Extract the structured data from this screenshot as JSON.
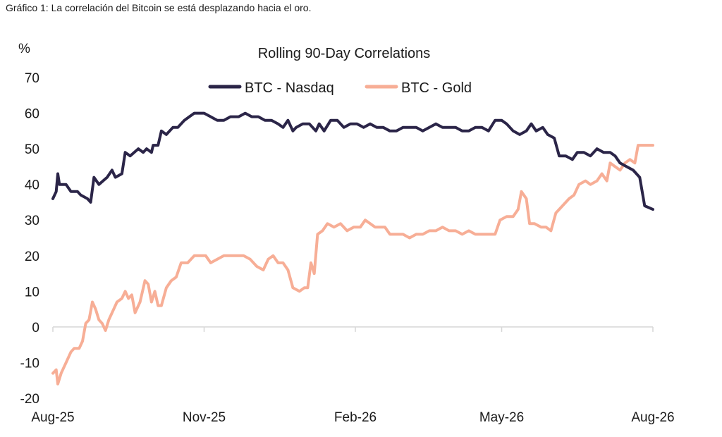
{
  "caption": "Gráfico 1: La correlación del Bitcoin se está desplazando hacia el oro.",
  "chart_data": {
    "type": "line",
    "title": "Rolling 90-Day Correlations",
    "ylabel": "%",
    "xlabel": "",
    "ylim": [
      -20,
      70
    ],
    "yticks": [
      -20,
      -10,
      0,
      10,
      20,
      30,
      40,
      50,
      60,
      70
    ],
    "xlim": [
      "2025-08-01",
      "2026-08-01"
    ],
    "xticks": [
      {
        "date": "2025-08-01",
        "label": "Aug-25"
      },
      {
        "date": "2025-11-01",
        "label": "Nov-25"
      },
      {
        "date": "2026-02-01",
        "label": "Feb-26"
      },
      {
        "date": "2026-05-01",
        "label": "May-26"
      },
      {
        "date": "2026-08-01",
        "label": "Aug-26"
      }
    ],
    "legend_position": "top-center",
    "grid": false,
    "series": [
      {
        "name": "BTC - Nasdaq",
        "color": "#2b2548",
        "points": [
          [
            "2025-08-01",
            36
          ],
          [
            "2025-08-03",
            38
          ],
          [
            "2025-08-04",
            43
          ],
          [
            "2025-08-05",
            40
          ],
          [
            "2025-08-09",
            40
          ],
          [
            "2025-08-12",
            38
          ],
          [
            "2025-08-16",
            38
          ],
          [
            "2025-08-18",
            37
          ],
          [
            "2025-08-22",
            36
          ],
          [
            "2025-08-24",
            35
          ],
          [
            "2025-08-26",
            42
          ],
          [
            "2025-08-29",
            40
          ],
          [
            "2025-09-03",
            42
          ],
          [
            "2025-09-06",
            44
          ],
          [
            "2025-09-08",
            42
          ],
          [
            "2025-09-12",
            43
          ],
          [
            "2025-09-14",
            49
          ],
          [
            "2025-09-17",
            48
          ],
          [
            "2025-09-22",
            50
          ],
          [
            "2025-09-25",
            49
          ],
          [
            "2025-09-27",
            50
          ],
          [
            "2025-09-30",
            49
          ],
          [
            "2025-10-01",
            51
          ],
          [
            "2025-10-04",
            51
          ],
          [
            "2025-10-06",
            55
          ],
          [
            "2025-10-09",
            54
          ],
          [
            "2025-10-13",
            56
          ],
          [
            "2025-10-16",
            56
          ],
          [
            "2025-10-20",
            58
          ],
          [
            "2025-10-23",
            59
          ],
          [
            "2025-10-26",
            60
          ],
          [
            "2025-11-01",
            60
          ],
          [
            "2025-11-05",
            59
          ],
          [
            "2025-11-09",
            58
          ],
          [
            "2025-11-13",
            58
          ],
          [
            "2025-11-17",
            59
          ],
          [
            "2025-11-22",
            59
          ],
          [
            "2025-11-26",
            60
          ],
          [
            "2025-11-30",
            59
          ],
          [
            "2025-12-04",
            59
          ],
          [
            "2025-12-08",
            58
          ],
          [
            "2025-12-12",
            58
          ],
          [
            "2025-12-16",
            57
          ],
          [
            "2025-12-19",
            56
          ],
          [
            "2025-12-22",
            58
          ],
          [
            "2025-12-25",
            55
          ],
          [
            "2025-12-27",
            56
          ],
          [
            "2025-12-31",
            57
          ],
          [
            "2026-01-04",
            57
          ],
          [
            "2026-01-08",
            55
          ],
          [
            "2026-01-10",
            57
          ],
          [
            "2026-01-13",
            55
          ],
          [
            "2026-01-17",
            58
          ],
          [
            "2026-01-21",
            58
          ],
          [
            "2026-01-25",
            56
          ],
          [
            "2026-01-29",
            57
          ],
          [
            "2026-02-02",
            57
          ],
          [
            "2026-02-06",
            56
          ],
          [
            "2026-02-10",
            57
          ],
          [
            "2026-02-14",
            56
          ],
          [
            "2026-02-18",
            56
          ],
          [
            "2026-02-22",
            55
          ],
          [
            "2026-02-26",
            55
          ],
          [
            "2026-03-02",
            56
          ],
          [
            "2026-03-06",
            56
          ],
          [
            "2026-03-10",
            56
          ],
          [
            "2026-03-14",
            55
          ],
          [
            "2026-03-18",
            56
          ],
          [
            "2026-03-22",
            57
          ],
          [
            "2026-03-26",
            56
          ],
          [
            "2026-03-30",
            56
          ],
          [
            "2026-04-03",
            56
          ],
          [
            "2026-04-07",
            55
          ],
          [
            "2026-04-11",
            55
          ],
          [
            "2026-04-15",
            56
          ],
          [
            "2026-04-19",
            56
          ],
          [
            "2026-04-23",
            55
          ],
          [
            "2026-04-27",
            58
          ],
          [
            "2026-05-01",
            58
          ],
          [
            "2026-05-04",
            57
          ],
          [
            "2026-05-08",
            55
          ],
          [
            "2026-05-12",
            54
          ],
          [
            "2026-05-16",
            55
          ],
          [
            "2026-05-19",
            57
          ],
          [
            "2026-05-22",
            55
          ],
          [
            "2026-05-26",
            56
          ],
          [
            "2026-05-29",
            54
          ],
          [
            "2026-06-02",
            53
          ],
          [
            "2026-06-05",
            48
          ],
          [
            "2026-06-09",
            48
          ],
          [
            "2026-06-13",
            47
          ],
          [
            "2026-06-16",
            49
          ],
          [
            "2026-06-20",
            49
          ],
          [
            "2026-06-24",
            48
          ],
          [
            "2026-06-28",
            50
          ],
          [
            "2026-07-02",
            49
          ],
          [
            "2026-07-06",
            49
          ],
          [
            "2026-07-09",
            48
          ],
          [
            "2026-07-12",
            46
          ],
          [
            "2026-07-16",
            45
          ],
          [
            "2026-07-20",
            44
          ],
          [
            "2026-07-24",
            42
          ],
          [
            "2026-07-27",
            34
          ],
          [
            "2026-08-01",
            33
          ]
        ]
      },
      {
        "name": "BTC - Gold",
        "color": "#f7ae96",
        "points": [
          [
            "2025-08-01",
            -13
          ],
          [
            "2025-08-03",
            -12
          ],
          [
            "2025-08-04",
            -16
          ],
          [
            "2025-08-06",
            -13
          ],
          [
            "2025-08-09",
            -10
          ],
          [
            "2025-08-12",
            -7
          ],
          [
            "2025-08-14",
            -6
          ],
          [
            "2025-08-17",
            -6
          ],
          [
            "2025-08-19",
            -4
          ],
          [
            "2025-08-21",
            1
          ],
          [
            "2025-08-23",
            2
          ],
          [
            "2025-08-25",
            7
          ],
          [
            "2025-08-27",
            5
          ],
          [
            "2025-08-29",
            2
          ],
          [
            "2025-08-31",
            1
          ],
          [
            "2025-09-02",
            -1
          ],
          [
            "2025-09-04",
            2
          ],
          [
            "2025-09-07",
            5
          ],
          [
            "2025-09-09",
            7
          ],
          [
            "2025-09-12",
            8
          ],
          [
            "2025-09-14",
            10
          ],
          [
            "2025-09-16",
            8
          ],
          [
            "2025-09-18",
            9
          ],
          [
            "2025-09-20",
            4
          ],
          [
            "2025-09-23",
            7
          ],
          [
            "2025-09-26",
            13
          ],
          [
            "2025-09-28",
            12
          ],
          [
            "2025-09-30",
            7
          ],
          [
            "2025-10-02",
            10
          ],
          [
            "2025-10-04",
            6
          ],
          [
            "2025-10-06",
            6
          ],
          [
            "2025-10-09",
            11
          ],
          [
            "2025-10-12",
            13
          ],
          [
            "2025-10-15",
            14
          ],
          [
            "2025-10-18",
            18
          ],
          [
            "2025-10-22",
            18
          ],
          [
            "2025-10-26",
            20
          ],
          [
            "2025-10-30",
            20
          ],
          [
            "2025-11-02",
            20
          ],
          [
            "2025-11-05",
            18
          ],
          [
            "2025-11-09",
            19
          ],
          [
            "2025-11-13",
            20
          ],
          [
            "2025-11-17",
            20
          ],
          [
            "2025-11-21",
            20
          ],
          [
            "2025-11-25",
            20
          ],
          [
            "2025-11-29",
            19
          ],
          [
            "2025-12-03",
            17
          ],
          [
            "2025-12-07",
            16
          ],
          [
            "2025-12-10",
            19
          ],
          [
            "2025-12-13",
            20
          ],
          [
            "2025-12-16",
            18
          ],
          [
            "2025-12-19",
            18
          ],
          [
            "2025-12-22",
            16
          ],
          [
            "2025-12-25",
            11
          ],
          [
            "2025-12-29",
            10
          ],
          [
            "2026-01-01",
            11
          ],
          [
            "2026-01-03",
            11
          ],
          [
            "2026-01-05",
            18
          ],
          [
            "2026-01-07",
            15
          ],
          [
            "2026-01-09",
            26
          ],
          [
            "2026-01-12",
            27
          ],
          [
            "2026-01-15",
            29
          ],
          [
            "2026-01-19",
            28
          ],
          [
            "2026-01-23",
            29
          ],
          [
            "2026-01-27",
            27
          ],
          [
            "2026-01-31",
            28
          ],
          [
            "2026-02-04",
            28
          ],
          [
            "2026-02-07",
            30
          ],
          [
            "2026-02-10",
            29
          ],
          [
            "2026-02-13",
            28
          ],
          [
            "2026-02-16",
            28
          ],
          [
            "2026-02-19",
            28
          ],
          [
            "2026-02-22",
            26
          ],
          [
            "2026-02-26",
            26
          ],
          [
            "2026-03-02",
            26
          ],
          [
            "2026-03-06",
            25
          ],
          [
            "2026-03-10",
            26
          ],
          [
            "2026-03-14",
            26
          ],
          [
            "2026-03-18",
            27
          ],
          [
            "2026-03-22",
            27
          ],
          [
            "2026-03-26",
            28
          ],
          [
            "2026-03-30",
            27
          ],
          [
            "2026-04-03",
            27
          ],
          [
            "2026-04-07",
            26
          ],
          [
            "2026-04-11",
            27
          ],
          [
            "2026-04-15",
            26
          ],
          [
            "2026-04-19",
            26
          ],
          [
            "2026-04-23",
            26
          ],
          [
            "2026-04-27",
            26
          ],
          [
            "2026-04-30",
            30
          ],
          [
            "2026-05-04",
            31
          ],
          [
            "2026-05-08",
            31
          ],
          [
            "2026-05-11",
            33
          ],
          [
            "2026-05-13",
            38
          ],
          [
            "2026-05-16",
            36
          ],
          [
            "2026-05-18",
            29
          ],
          [
            "2026-05-21",
            29
          ],
          [
            "2026-05-25",
            28
          ],
          [
            "2026-05-28",
            28
          ],
          [
            "2026-05-31",
            27
          ],
          [
            "2026-06-03",
            32
          ],
          [
            "2026-06-07",
            34
          ],
          [
            "2026-06-11",
            36
          ],
          [
            "2026-06-14",
            37
          ],
          [
            "2026-06-17",
            40
          ],
          [
            "2026-06-21",
            41
          ],
          [
            "2026-06-24",
            40
          ],
          [
            "2026-06-28",
            41
          ],
          [
            "2026-07-01",
            43
          ],
          [
            "2026-07-04",
            41
          ],
          [
            "2026-07-06",
            46
          ],
          [
            "2026-07-09",
            45
          ],
          [
            "2026-07-12",
            44
          ],
          [
            "2026-07-15",
            46
          ],
          [
            "2026-07-18",
            47
          ],
          [
            "2026-07-21",
            46
          ],
          [
            "2026-07-23",
            51
          ],
          [
            "2026-07-26",
            51
          ],
          [
            "2026-08-01",
            51
          ]
        ]
      }
    ]
  }
}
